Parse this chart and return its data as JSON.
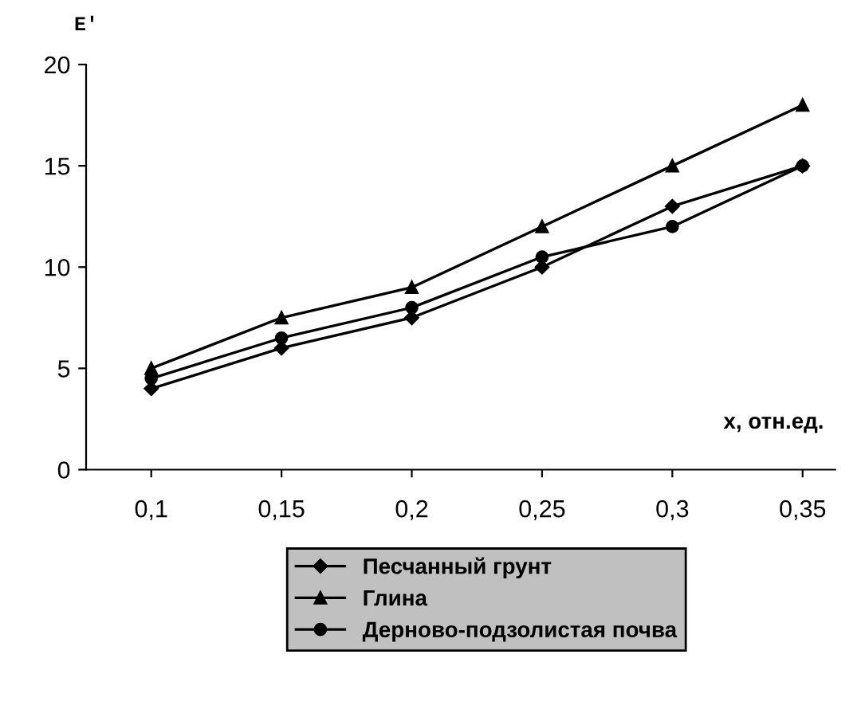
{
  "chart_data": {
    "type": "line",
    "xlabel": "x, отн.ед.",
    "ylabel": "E'",
    "categories": [
      "0,1",
      "0,15",
      "0,2",
      "0,25",
      "0,3",
      "0,35"
    ],
    "series": [
      {
        "name": "Песчанный грунт",
        "color": "#000000",
        "marker": "diamond",
        "values": [
          4,
          6,
          7.5,
          10,
          13,
          15
        ]
      },
      {
        "name": "Глина",
        "color": "#000000",
        "marker": "triangle",
        "values": [
          5,
          7.5,
          9,
          12,
          15,
          18
        ]
      },
      {
        "name": "Дерново-подзолистая почва",
        "color": "#000000",
        "marker": "circle",
        "values": [
          4.5,
          6.5,
          8,
          10.5,
          12,
          15
        ]
      }
    ],
    "ylim": [
      0,
      20
    ],
    "yticks": [
      0,
      5,
      10,
      15,
      20
    ],
    "grid": false,
    "legend": "bottom",
    "line_style": "solid"
  }
}
